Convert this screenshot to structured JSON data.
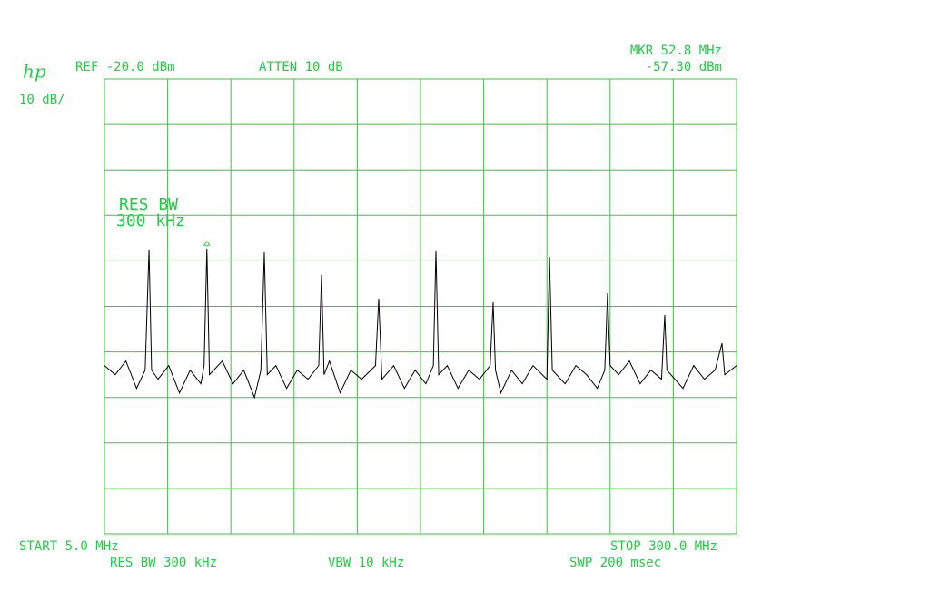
{
  "chart_data": {
    "type": "line",
    "logo": "hp",
    "scale_label": "10 dB/",
    "reference": "REF -20.0 dBm",
    "attenuation": "ATTEN 10 dB",
    "marker_frequency": "MKR 52.8 MHz",
    "marker_level": "-57.30 dBm",
    "annotation": [
      "RES BW",
      "300 kHz"
    ],
    "start": "START 5.0 MHz",
    "stop": "STOP 300.0 MHz",
    "res_bw": "RES BW 300 kHz",
    "vbw": "VBW 10 kHz",
    "sweep": "SWP 200 msec",
    "xlim": [
      5,
      300
    ],
    "ylim": [
      -120,
      -20
    ],
    "xticks": [
      5,
      34.5,
      64,
      93.5,
      123,
      152.5,
      182,
      211.5,
      241,
      270.5,
      300
    ],
    "yticks": [
      -120,
      -110,
      -100,
      -90,
      -80,
      -70,
      -60,
      -50,
      -40,
      -30,
      -20
    ],
    "grid": true,
    "grid_color": "#33cc33",
    "marker_index": 13,
    "series": [
      {
        "color": "#000000",
        "x": [
          5,
          10,
          15,
          20,
          24,
          25.8,
          27,
          30,
          35,
          40,
          45,
          50,
          51.5,
          52.8,
          54,
          60,
          65,
          70,
          75,
          78,
          79.6,
          81,
          85,
          90,
          95,
          100,
          105,
          106.3,
          107.5,
          110,
          115,
          120,
          125,
          131.5,
          133.0,
          134.5,
          140,
          145,
          150,
          155,
          158.5,
          159.7,
          161,
          165,
          170,
          175,
          180,
          185,
          186.4,
          187.5,
          190,
          195,
          200,
          205,
          211.5,
          212.7,
          214,
          220,
          225,
          230,
          235,
          238.5,
          239.8,
          241,
          245,
          250,
          255,
          260,
          265,
          266.5,
          267.5,
          275,
          280,
          285,
          290,
          293.2,
          294.5,
          300
        ],
        "values": [
          -83,
          -85,
          -82,
          -88,
          -84,
          -57.5,
          -84,
          -86,
          -83,
          -89,
          -84,
          -87,
          -83,
          -57.3,
          -85,
          -82,
          -87,
          -84,
          -90,
          -84,
          -58.1,
          -85,
          -83,
          -88,
          -84,
          -86,
          -83,
          -63.1,
          -85,
          -82,
          -89,
          -84,
          -86,
          -83,
          -68.3,
          -86,
          -83,
          -88,
          -84,
          -87,
          -83,
          -57.7,
          -85,
          -83,
          -88,
          -84,
          -86,
          -83,
          -69.1,
          -84,
          -89,
          -84,
          -87,
          -83,
          -86,
          -59.1,
          -84,
          -87,
          -83,
          -85,
          -88,
          -84,
          -67.1,
          -83,
          -85,
          -82,
          -87,
          -84,
          -86,
          -71.9,
          -84,
          -88,
          -83,
          -86,
          -84,
          -78.1,
          -85,
          -83
        ]
      }
    ]
  }
}
